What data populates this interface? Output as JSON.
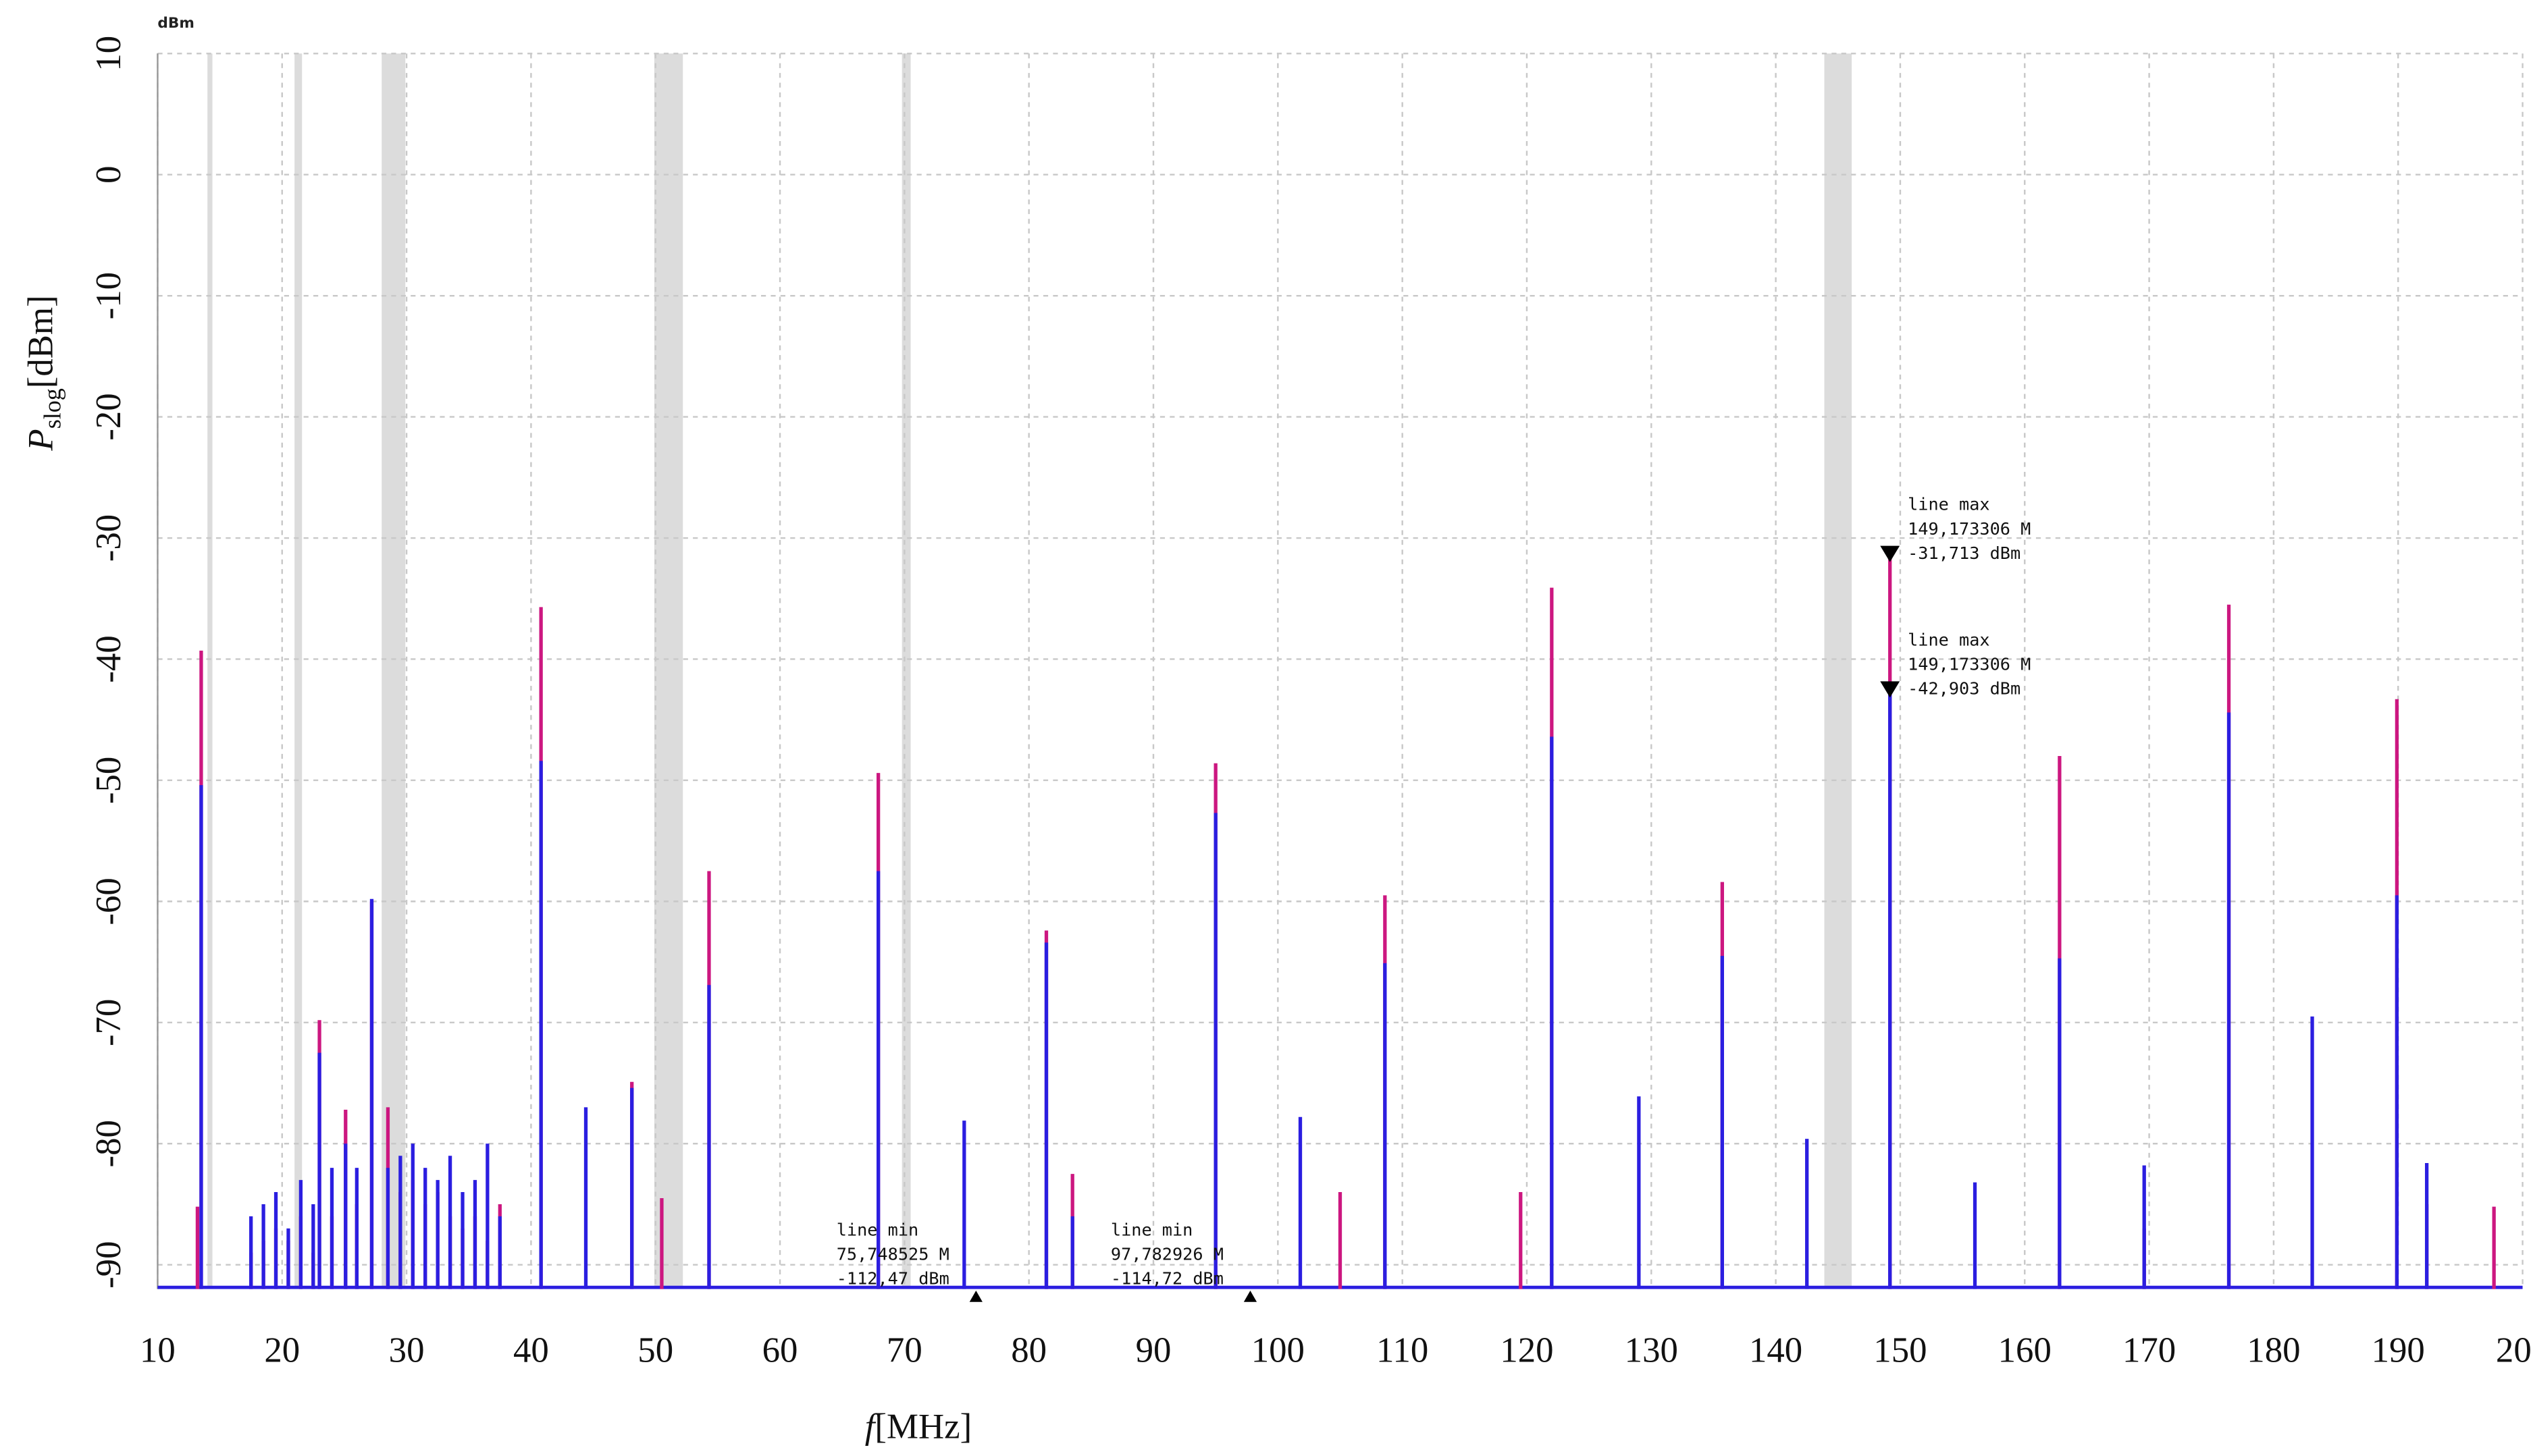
{
  "chart_data": {
    "type": "spectrum",
    "title": "dBm",
    "xlabel": [
      "f",
      "[MHz]"
    ],
    "ylabel": [
      "P",
      "slog",
      "[dBm]"
    ],
    "xlim": [
      10,
      200
    ],
    "ylim": [
      -92,
      10
    ],
    "xticks": [
      10,
      20,
      30,
      40,
      50,
      60,
      70,
      80,
      90,
      100,
      110,
      120,
      130,
      140,
      150,
      160,
      170,
      180,
      190,
      200
    ],
    "yticks": [
      10,
      0,
      -10,
      -20,
      -30,
      -40,
      -50,
      -60,
      -70,
      -80,
      -90
    ],
    "grid": true,
    "bands": [
      [
        14,
        14.4
      ],
      [
        21,
        21.6
      ],
      [
        28,
        29.9
      ],
      [
        49.9,
        52.2
      ],
      [
        69.8,
        70.5
      ],
      [
        143.9,
        146.1
      ]
    ],
    "x": [
      13.2,
      13.5,
      17.5,
      18.5,
      19.5,
      20.5,
      21.5,
      22.5,
      23.0,
      24.0,
      25.1,
      26.0,
      27.2,
      28.5,
      29.5,
      30.5,
      31.5,
      32.5,
      33.5,
      34.5,
      35.5,
      36.5,
      37.5,
      40.8,
      44.4,
      48.1,
      50.5,
      54.3,
      67.9,
      74.8,
      81.4,
      83.5,
      95.0,
      101.8,
      105.0,
      108.6,
      119.5,
      122.0,
      129.0,
      135.7,
      142.5,
      149.173306,
      156.0,
      162.8,
      169.6,
      176.4,
      183.1,
      189.9,
      192.3,
      197.7
    ],
    "series": [
      {
        "color": "#cc1780",
        "values": [
          -85.2,
          -39.3,
          -89,
          -88,
          -87,
          -88,
          -86,
          -89,
          -69.8,
          -86,
          -77.2,
          -85,
          -60.0,
          -77,
          -84,
          -83,
          -85,
          -84,
          -86,
          -87,
          -86,
          -88,
          -85,
          -35.7,
          null,
          -74.9,
          -84.5,
          -57.5,
          -49.4,
          null,
          -62.4,
          -82.5,
          -48.6,
          null,
          -84,
          -59.5,
          -84,
          -34.1,
          null,
          -58.4,
          null,
          -31.713,
          null,
          -48.0,
          -87,
          -35.5,
          null,
          -43.3,
          -85,
          -85.2
        ]
      },
      {
        "color": "#2b1ee0",
        "values": [
          null,
          -50.4,
          -86,
          -85,
          -84,
          -87,
          -83,
          -85,
          -72.5,
          -82,
          -80,
          -82,
          -59.8,
          -82,
          -81,
          -80,
          -82,
          -83,
          -81,
          -84,
          -83,
          -80,
          -86,
          -48.4,
          -77,
          -75.4,
          null,
          -66.9,
          -57.5,
          -78.1,
          -63.4,
          -86,
          -52.7,
          -77.8,
          null,
          -65.1,
          null,
          -46.4,
          -76.1,
          -64.5,
          -79.6,
          -42.903,
          -83.2,
          -64.7,
          -81.8,
          -44.4,
          -69.5,
          -59.5,
          -81.6,
          null
        ]
      }
    ],
    "annotations": [
      {
        "kind": "max",
        "label": "line max",
        "x": 149.173306,
        "y": -31.713,
        "x_label": "149,173306 M",
        "y_label": "-31,713 dBm"
      },
      {
        "kind": "max",
        "label": "line max",
        "x": 149.173306,
        "y": -42.903,
        "x_label": "149,173306 M",
        "y_label": "-42,903 dBm"
      },
      {
        "kind": "min",
        "label": "line min",
        "x": 75.748525,
        "y": -112.47,
        "x_label": "75,748525 M",
        "y_label": "-112,47 dBm"
      },
      {
        "kind": "min",
        "label": "line min",
        "x": 97.782926,
        "y": -114.72,
        "x_label": "97,782926 M",
        "y_label": "-114,72 dBm"
      }
    ]
  }
}
